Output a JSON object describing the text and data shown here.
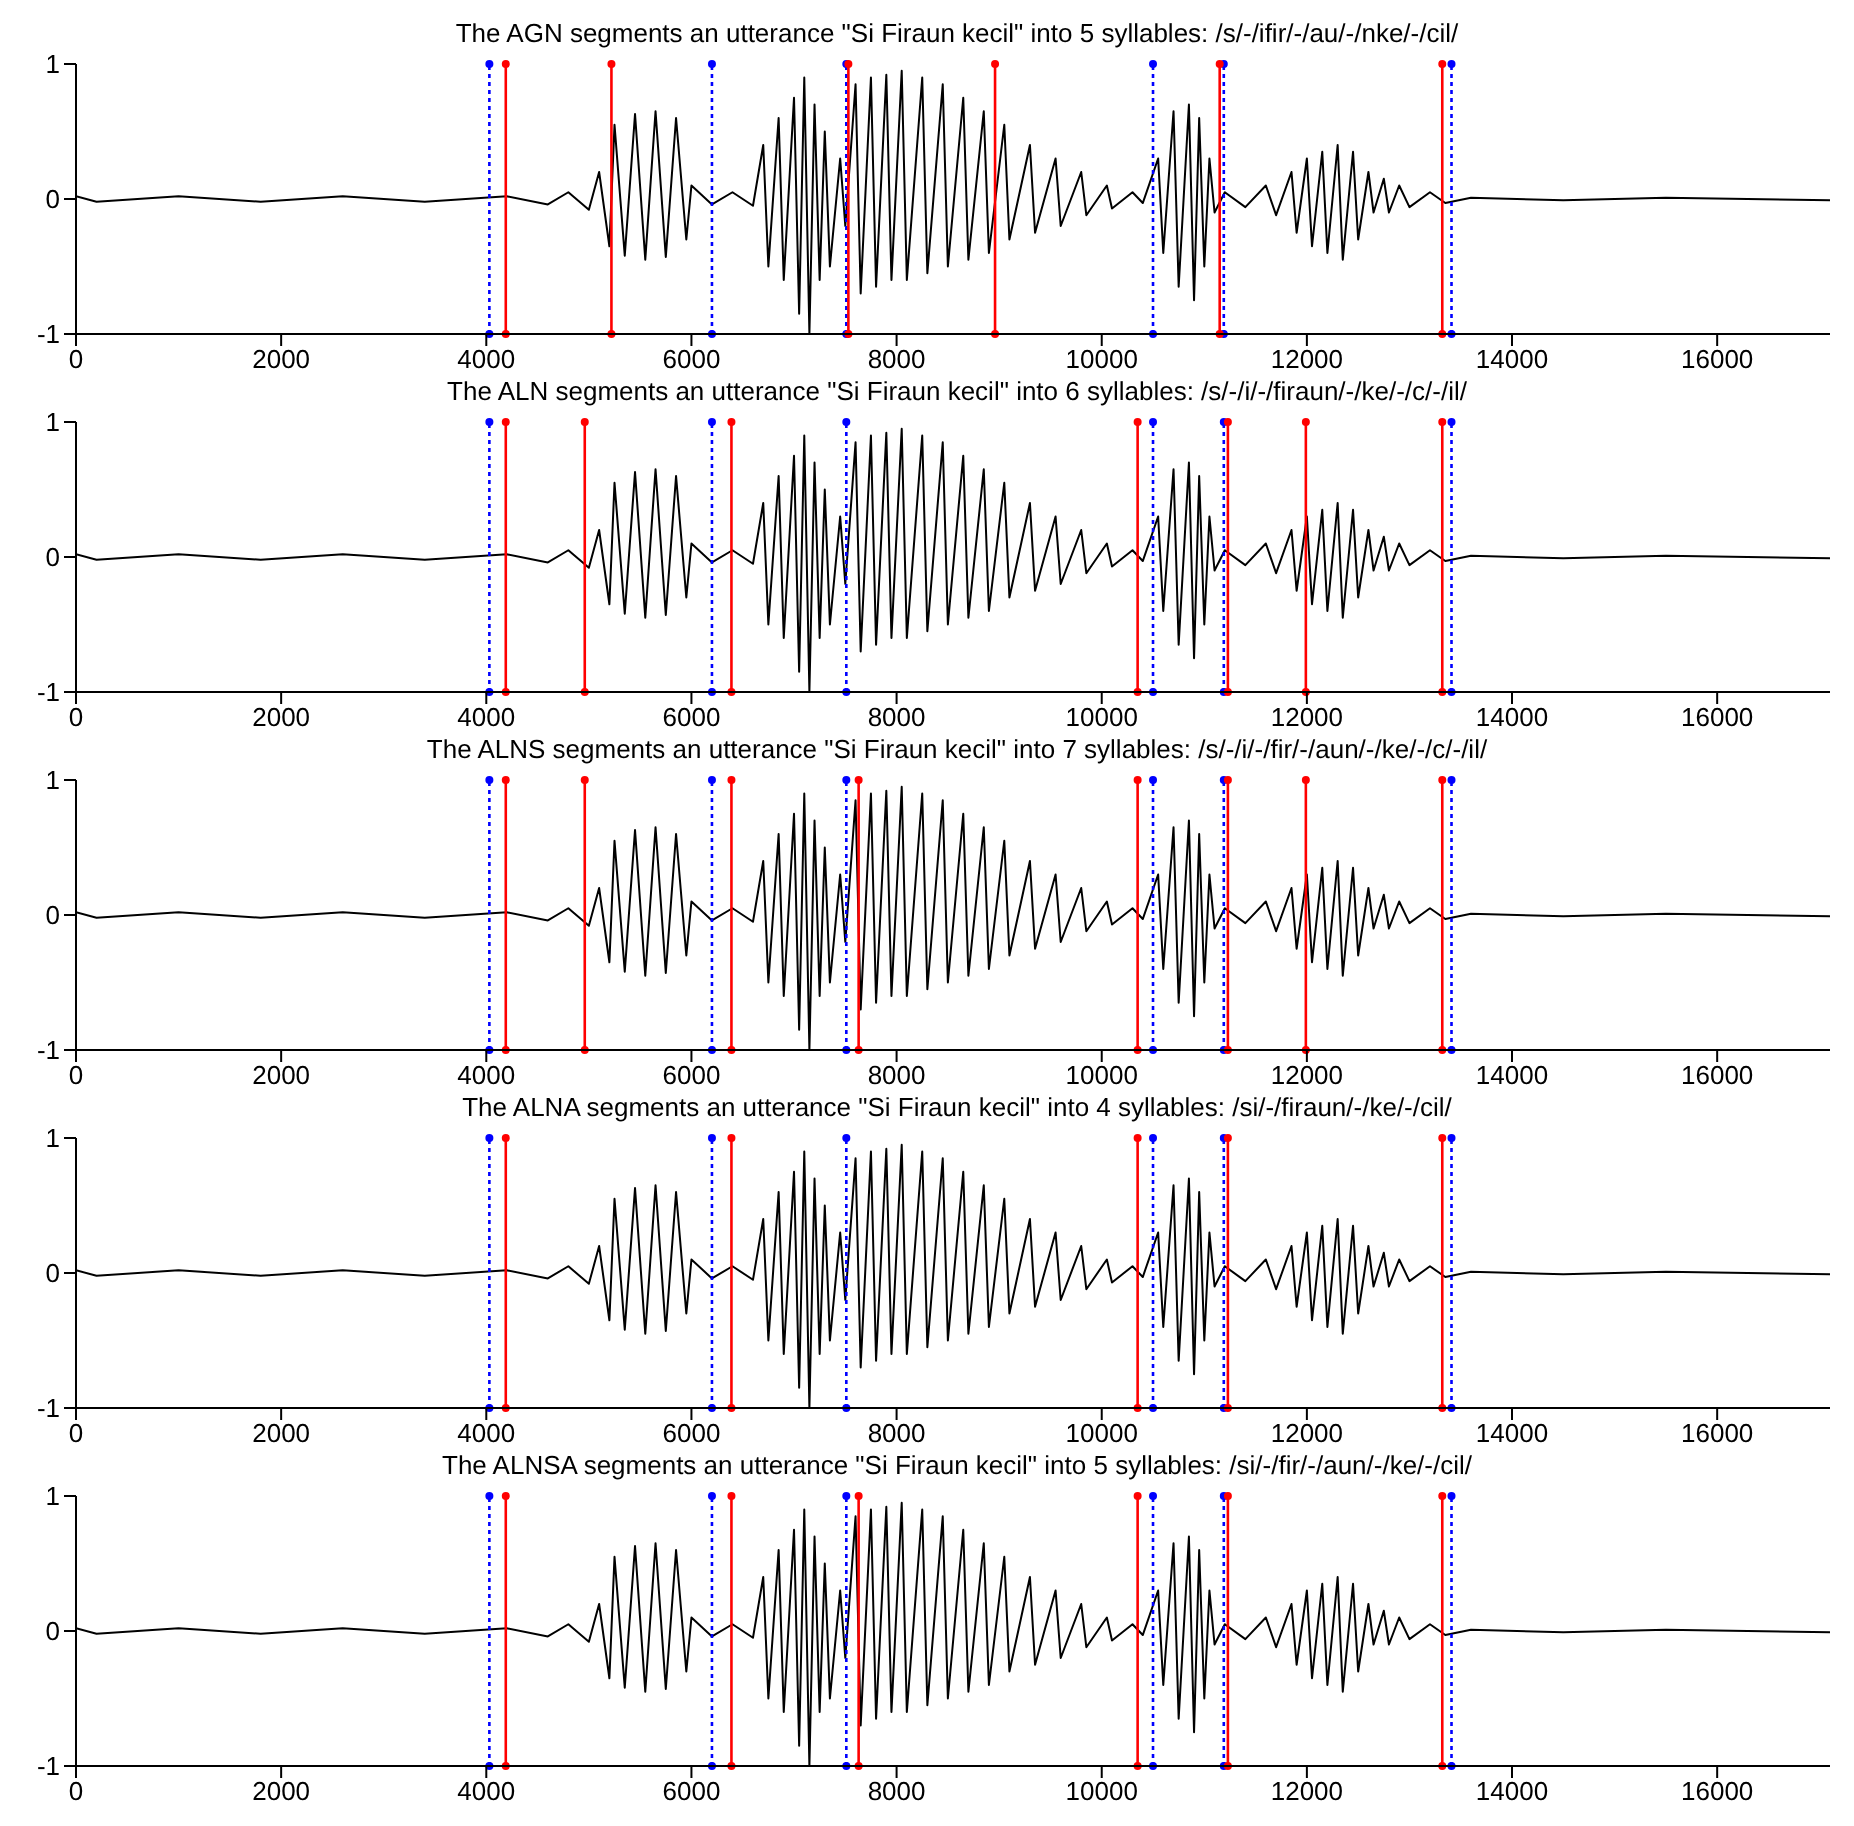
{
  "chart_data": [
    {
      "type": "line",
      "title": "The AGN segments an utterance \"Si Firaun kecil\" into 5 syllables: /s/-/ifir/-/au/-/nke/-/cil/",
      "x": [
        0,
        200,
        1000,
        1800,
        2600,
        3400,
        4200,
        4600,
        4800,
        5000,
        5100,
        5200,
        5250,
        5350,
        5450,
        5550,
        5650,
        5750,
        5850,
        5950,
        6000,
        6200,
        6400,
        6600,
        6700,
        6750,
        6850,
        6900,
        7000,
        7050,
        7100,
        7150,
        7200,
        7250,
        7300,
        7350,
        7450,
        7500,
        7600,
        7650,
        7750,
        7800,
        7900,
        7950,
        8050,
        8100,
        8250,
        8300,
        8450,
        8500,
        8650,
        8700,
        8850,
        8900,
        9050,
        9100,
        9300,
        9350,
        9550,
        9600,
        9800,
        9850,
        10050,
        10100,
        10300,
        10400,
        10550,
        10600,
        10700,
        10750,
        10850,
        10900,
        10950,
        11000,
        11050,
        11100,
        11200,
        11400,
        11600,
        11700,
        11850,
        11900,
        12000,
        12050,
        12150,
        12200,
        12300,
        12350,
        12450,
        12500,
        12600,
        12650,
        12750,
        12800,
        12900,
        13000,
        13200,
        13350,
        13600,
        14500,
        15500,
        17100
      ],
      "series": [
        {
          "color": "#000000",
          "values": [
            0.02,
            -0.02,
            0.02,
            -0.02,
            0.02,
            -0.02,
            0.02,
            -0.04,
            0.05,
            -0.08,
            0.2,
            -0.35,
            0.55,
            -0.42,
            0.63,
            -0.45,
            0.65,
            -0.43,
            0.6,
            -0.3,
            0.1,
            -0.04,
            0.05,
            -0.05,
            0.4,
            -0.5,
            0.6,
            -0.6,
            0.75,
            -0.85,
            0.9,
            -1.0,
            0.7,
            -0.6,
            0.5,
            -0.5,
            0.3,
            -0.2,
            0.85,
            -0.7,
            0.9,
            -0.65,
            0.92,
            -0.6,
            0.95,
            -0.6,
            0.9,
            -0.55,
            0.85,
            -0.5,
            0.75,
            -0.45,
            0.65,
            -0.4,
            0.55,
            -0.3,
            0.4,
            -0.25,
            0.3,
            -0.2,
            0.2,
            -0.12,
            0.1,
            -0.07,
            0.05,
            -0.03,
            0.3,
            -0.4,
            0.65,
            -0.65,
            0.7,
            -0.75,
            0.6,
            -0.5,
            0.3,
            -0.1,
            0.05,
            -0.06,
            0.1,
            -0.12,
            0.2,
            -0.25,
            0.3,
            -0.35,
            0.35,
            -0.4,
            0.4,
            -0.45,
            0.35,
            -0.3,
            0.2,
            -0.1,
            0.15,
            -0.1,
            0.1,
            -0.06,
            0.05,
            -0.03,
            0.01,
            -0.01,
            0.01,
            -0.01
          ]
        }
      ],
      "xlim": [
        0,
        17100
      ],
      "xticks": [
        0,
        2000,
        4000,
        6000,
        8000,
        10000,
        12000,
        14000,
        16000
      ],
      "ylim": [
        -1,
        1
      ],
      "yticks": [
        -1,
        0,
        1
      ],
      "grid": false,
      "legend": false,
      "ref_lines": [
        {
          "axis": "x",
          "value": 4030,
          "color": "#0000ff",
          "line_style": "dotted"
        },
        {
          "axis": "x",
          "value": 6200,
          "color": "#0000ff",
          "line_style": "dotted"
        },
        {
          "axis": "x",
          "value": 7510,
          "color": "#0000ff",
          "line_style": "dotted"
        },
        {
          "axis": "x",
          "value": 10500,
          "color": "#0000ff",
          "line_style": "dotted"
        },
        {
          "axis": "x",
          "value": 11190,
          "color": "#0000ff",
          "line_style": "dotted"
        },
        {
          "axis": "x",
          "value": 13410,
          "color": "#0000ff",
          "line_style": "dotted"
        },
        {
          "axis": "x",
          "value": 4190,
          "color": "#ff0000",
          "line_style": "solid"
        },
        {
          "axis": "x",
          "value": 5220,
          "color": "#ff0000",
          "line_style": "solid"
        },
        {
          "axis": "x",
          "value": 7530,
          "color": "#ff0000",
          "line_style": "solid"
        },
        {
          "axis": "x",
          "value": 8960,
          "color": "#ff0000",
          "line_style": "solid"
        },
        {
          "axis": "x",
          "value": 11150,
          "color": "#ff0000",
          "line_style": "solid"
        },
        {
          "axis": "x",
          "value": 13320,
          "color": "#ff0000",
          "line_style": "solid"
        }
      ]
    },
    {
      "type": "line",
      "title": "The ALN segments an utterance \"Si Firaun kecil\" into 6 syllables: /s/-/i/-/firaun/-/ke/-/c/-/il/",
      "x": [
        0,
        200,
        1000,
        1800,
        2600,
        3400,
        4200,
        4600,
        4800,
        5000,
        5100,
        5200,
        5250,
        5350,
        5450,
        5550,
        5650,
        5750,
        5850,
        5950,
        6000,
        6200,
        6400,
        6600,
        6700,
        6750,
        6850,
        6900,
        7000,
        7050,
        7100,
        7150,
        7200,
        7250,
        7300,
        7350,
        7450,
        7500,
        7600,
        7650,
        7750,
        7800,
        7900,
        7950,
        8050,
        8100,
        8250,
        8300,
        8450,
        8500,
        8650,
        8700,
        8850,
        8900,
        9050,
        9100,
        9300,
        9350,
        9550,
        9600,
        9800,
        9850,
        10050,
        10100,
        10300,
        10400,
        10550,
        10600,
        10700,
        10750,
        10850,
        10900,
        10950,
        11000,
        11050,
        11100,
        11200,
        11400,
        11600,
        11700,
        11850,
        11900,
        12000,
        12050,
        12150,
        12200,
        12300,
        12350,
        12450,
        12500,
        12600,
        12650,
        12750,
        12800,
        12900,
        13000,
        13200,
        13350,
        13600,
        14500,
        15500,
        17100
      ],
      "series": [
        {
          "color": "#000000",
          "values": [
            0.02,
            -0.02,
            0.02,
            -0.02,
            0.02,
            -0.02,
            0.02,
            -0.04,
            0.05,
            -0.08,
            0.2,
            -0.35,
            0.55,
            -0.42,
            0.63,
            -0.45,
            0.65,
            -0.43,
            0.6,
            -0.3,
            0.1,
            -0.04,
            0.05,
            -0.05,
            0.4,
            -0.5,
            0.6,
            -0.6,
            0.75,
            -0.85,
            0.9,
            -1.0,
            0.7,
            -0.6,
            0.5,
            -0.5,
            0.3,
            -0.2,
            0.85,
            -0.7,
            0.9,
            -0.65,
            0.92,
            -0.6,
            0.95,
            -0.6,
            0.9,
            -0.55,
            0.85,
            -0.5,
            0.75,
            -0.45,
            0.65,
            -0.4,
            0.55,
            -0.3,
            0.4,
            -0.25,
            0.3,
            -0.2,
            0.2,
            -0.12,
            0.1,
            -0.07,
            0.05,
            -0.03,
            0.3,
            -0.4,
            0.65,
            -0.65,
            0.7,
            -0.75,
            0.6,
            -0.5,
            0.3,
            -0.1,
            0.05,
            -0.06,
            0.1,
            -0.12,
            0.2,
            -0.25,
            0.3,
            -0.35,
            0.35,
            -0.4,
            0.4,
            -0.45,
            0.35,
            -0.3,
            0.2,
            -0.1,
            0.15,
            -0.1,
            0.1,
            -0.06,
            0.05,
            -0.03,
            0.01,
            -0.01,
            0.01,
            -0.01
          ]
        }
      ],
      "xlim": [
        0,
        17100
      ],
      "xticks": [
        0,
        2000,
        4000,
        6000,
        8000,
        10000,
        12000,
        14000,
        16000
      ],
      "ylim": [
        -1,
        1
      ],
      "yticks": [
        -1,
        0,
        1
      ],
      "grid": false,
      "legend": false,
      "ref_lines": [
        {
          "axis": "x",
          "value": 4030,
          "color": "#0000ff",
          "line_style": "dotted"
        },
        {
          "axis": "x",
          "value": 6200,
          "color": "#0000ff",
          "line_style": "dotted"
        },
        {
          "axis": "x",
          "value": 7510,
          "color": "#0000ff",
          "line_style": "dotted"
        },
        {
          "axis": "x",
          "value": 10500,
          "color": "#0000ff",
          "line_style": "dotted"
        },
        {
          "axis": "x",
          "value": 11190,
          "color": "#0000ff",
          "line_style": "dotted"
        },
        {
          "axis": "x",
          "value": 13410,
          "color": "#0000ff",
          "line_style": "dotted"
        },
        {
          "axis": "x",
          "value": 4190,
          "color": "#ff0000",
          "line_style": "solid"
        },
        {
          "axis": "x",
          "value": 4960,
          "color": "#ff0000",
          "line_style": "solid"
        },
        {
          "axis": "x",
          "value": 6390,
          "color": "#ff0000",
          "line_style": "solid"
        },
        {
          "axis": "x",
          "value": 10350,
          "color": "#ff0000",
          "line_style": "solid"
        },
        {
          "axis": "x",
          "value": 11230,
          "color": "#ff0000",
          "line_style": "solid"
        },
        {
          "axis": "x",
          "value": 11990,
          "color": "#ff0000",
          "line_style": "solid"
        },
        {
          "axis": "x",
          "value": 13320,
          "color": "#ff0000",
          "line_style": "solid"
        }
      ]
    },
    {
      "type": "line",
      "title": "The ALNS segments an utterance \"Si Firaun kecil\" into 7 syllables: /s/-/i/-/fir/-/aun/-/ke/-/c/-/il/",
      "x": [
        0,
        200,
        1000,
        1800,
        2600,
        3400,
        4200,
        4600,
        4800,
        5000,
        5100,
        5200,
        5250,
        5350,
        5450,
        5550,
        5650,
        5750,
        5850,
        5950,
        6000,
        6200,
        6400,
        6600,
        6700,
        6750,
        6850,
        6900,
        7000,
        7050,
        7100,
        7150,
        7200,
        7250,
        7300,
        7350,
        7450,
        7500,
        7600,
        7650,
        7750,
        7800,
        7900,
        7950,
        8050,
        8100,
        8250,
        8300,
        8450,
        8500,
        8650,
        8700,
        8850,
        8900,
        9050,
        9100,
        9300,
        9350,
        9550,
        9600,
        9800,
        9850,
        10050,
        10100,
        10300,
        10400,
        10550,
        10600,
        10700,
        10750,
        10850,
        10900,
        10950,
        11000,
        11050,
        11100,
        11200,
        11400,
        11600,
        11700,
        11850,
        11900,
        12000,
        12050,
        12150,
        12200,
        12300,
        12350,
        12450,
        12500,
        12600,
        12650,
        12750,
        12800,
        12900,
        13000,
        13200,
        13350,
        13600,
        14500,
        15500,
        17100
      ],
      "series": [
        {
          "color": "#000000",
          "values": [
            0.02,
            -0.02,
            0.02,
            -0.02,
            0.02,
            -0.02,
            0.02,
            -0.04,
            0.05,
            -0.08,
            0.2,
            -0.35,
            0.55,
            -0.42,
            0.63,
            -0.45,
            0.65,
            -0.43,
            0.6,
            -0.3,
            0.1,
            -0.04,
            0.05,
            -0.05,
            0.4,
            -0.5,
            0.6,
            -0.6,
            0.75,
            -0.85,
            0.9,
            -1.0,
            0.7,
            -0.6,
            0.5,
            -0.5,
            0.3,
            -0.2,
            0.85,
            -0.7,
            0.9,
            -0.65,
            0.92,
            -0.6,
            0.95,
            -0.6,
            0.9,
            -0.55,
            0.85,
            -0.5,
            0.75,
            -0.45,
            0.65,
            -0.4,
            0.55,
            -0.3,
            0.4,
            -0.25,
            0.3,
            -0.2,
            0.2,
            -0.12,
            0.1,
            -0.07,
            0.05,
            -0.03,
            0.3,
            -0.4,
            0.65,
            -0.65,
            0.7,
            -0.75,
            0.6,
            -0.5,
            0.3,
            -0.1,
            0.05,
            -0.06,
            0.1,
            -0.12,
            0.2,
            -0.25,
            0.3,
            -0.35,
            0.35,
            -0.4,
            0.4,
            -0.45,
            0.35,
            -0.3,
            0.2,
            -0.1,
            0.15,
            -0.1,
            0.1,
            -0.06,
            0.05,
            -0.03,
            0.01,
            -0.01,
            0.01,
            -0.01
          ]
        }
      ],
      "xlim": [
        0,
        17100
      ],
      "xticks": [
        0,
        2000,
        4000,
        6000,
        8000,
        10000,
        12000,
        14000,
        16000
      ],
      "ylim": [
        -1,
        1
      ],
      "yticks": [
        -1,
        0,
        1
      ],
      "grid": false,
      "legend": false,
      "ref_lines": [
        {
          "axis": "x",
          "value": 4030,
          "color": "#0000ff",
          "line_style": "dotted"
        },
        {
          "axis": "x",
          "value": 6200,
          "color": "#0000ff",
          "line_style": "dotted"
        },
        {
          "axis": "x",
          "value": 7510,
          "color": "#0000ff",
          "line_style": "dotted"
        },
        {
          "axis": "x",
          "value": 10500,
          "color": "#0000ff",
          "line_style": "dotted"
        },
        {
          "axis": "x",
          "value": 11190,
          "color": "#0000ff",
          "line_style": "dotted"
        },
        {
          "axis": "x",
          "value": 13410,
          "color": "#0000ff",
          "line_style": "dotted"
        },
        {
          "axis": "x",
          "value": 4190,
          "color": "#ff0000",
          "line_style": "solid"
        },
        {
          "axis": "x",
          "value": 4960,
          "color": "#ff0000",
          "line_style": "solid"
        },
        {
          "axis": "x",
          "value": 6390,
          "color": "#ff0000",
          "line_style": "solid"
        },
        {
          "axis": "x",
          "value": 7630,
          "color": "#ff0000",
          "line_style": "solid"
        },
        {
          "axis": "x",
          "value": 10350,
          "color": "#ff0000",
          "line_style": "solid"
        },
        {
          "axis": "x",
          "value": 11230,
          "color": "#ff0000",
          "line_style": "solid"
        },
        {
          "axis": "x",
          "value": 11990,
          "color": "#ff0000",
          "line_style": "solid"
        },
        {
          "axis": "x",
          "value": 13320,
          "color": "#ff0000",
          "line_style": "solid"
        }
      ]
    },
    {
      "type": "line",
      "title": "The ALNA segments an utterance \"Si Firaun kecil\" into 4 syllables: /si/-/firaun/-/ke/-/cil/",
      "x": [
        0,
        200,
        1000,
        1800,
        2600,
        3400,
        4200,
        4600,
        4800,
        5000,
        5100,
        5200,
        5250,
        5350,
        5450,
        5550,
        5650,
        5750,
        5850,
        5950,
        6000,
        6200,
        6400,
        6600,
        6700,
        6750,
        6850,
        6900,
        7000,
        7050,
        7100,
        7150,
        7200,
        7250,
        7300,
        7350,
        7450,
        7500,
        7600,
        7650,
        7750,
        7800,
        7900,
        7950,
        8050,
        8100,
        8250,
        8300,
        8450,
        8500,
        8650,
        8700,
        8850,
        8900,
        9050,
        9100,
        9300,
        9350,
        9550,
        9600,
        9800,
        9850,
        10050,
        10100,
        10300,
        10400,
        10550,
        10600,
        10700,
        10750,
        10850,
        10900,
        10950,
        11000,
        11050,
        11100,
        11200,
        11400,
        11600,
        11700,
        11850,
        11900,
        12000,
        12050,
        12150,
        12200,
        12300,
        12350,
        12450,
        12500,
        12600,
        12650,
        12750,
        12800,
        12900,
        13000,
        13200,
        13350,
        13600,
        14500,
        15500,
        17100
      ],
      "series": [
        {
          "color": "#000000",
          "values": [
            0.02,
            -0.02,
            0.02,
            -0.02,
            0.02,
            -0.02,
            0.02,
            -0.04,
            0.05,
            -0.08,
            0.2,
            -0.35,
            0.55,
            -0.42,
            0.63,
            -0.45,
            0.65,
            -0.43,
            0.6,
            -0.3,
            0.1,
            -0.04,
            0.05,
            -0.05,
            0.4,
            -0.5,
            0.6,
            -0.6,
            0.75,
            -0.85,
            0.9,
            -1.0,
            0.7,
            -0.6,
            0.5,
            -0.5,
            0.3,
            -0.2,
            0.85,
            -0.7,
            0.9,
            -0.65,
            0.92,
            -0.6,
            0.95,
            -0.6,
            0.9,
            -0.55,
            0.85,
            -0.5,
            0.75,
            -0.45,
            0.65,
            -0.4,
            0.55,
            -0.3,
            0.4,
            -0.25,
            0.3,
            -0.2,
            0.2,
            -0.12,
            0.1,
            -0.07,
            0.05,
            -0.03,
            0.3,
            -0.4,
            0.65,
            -0.65,
            0.7,
            -0.75,
            0.6,
            -0.5,
            0.3,
            -0.1,
            0.05,
            -0.06,
            0.1,
            -0.12,
            0.2,
            -0.25,
            0.3,
            -0.35,
            0.35,
            -0.4,
            0.4,
            -0.45,
            0.35,
            -0.3,
            0.2,
            -0.1,
            0.15,
            -0.1,
            0.1,
            -0.06,
            0.05,
            -0.03,
            0.01,
            -0.01,
            0.01,
            -0.01
          ]
        }
      ],
      "xlim": [
        0,
        17100
      ],
      "xticks": [
        0,
        2000,
        4000,
        6000,
        8000,
        10000,
        12000,
        14000,
        16000
      ],
      "ylim": [
        -1,
        1
      ],
      "yticks": [
        -1,
        0,
        1
      ],
      "grid": false,
      "legend": false,
      "ref_lines": [
        {
          "axis": "x",
          "value": 4030,
          "color": "#0000ff",
          "line_style": "dotted"
        },
        {
          "axis": "x",
          "value": 6200,
          "color": "#0000ff",
          "line_style": "dotted"
        },
        {
          "axis": "x",
          "value": 7510,
          "color": "#0000ff",
          "line_style": "dotted"
        },
        {
          "axis": "x",
          "value": 10500,
          "color": "#0000ff",
          "line_style": "dotted"
        },
        {
          "axis": "x",
          "value": 11190,
          "color": "#0000ff",
          "line_style": "dotted"
        },
        {
          "axis": "x",
          "value": 13410,
          "color": "#0000ff",
          "line_style": "dotted"
        },
        {
          "axis": "x",
          "value": 4190,
          "color": "#ff0000",
          "line_style": "solid"
        },
        {
          "axis": "x",
          "value": 6390,
          "color": "#ff0000",
          "line_style": "solid"
        },
        {
          "axis": "x",
          "value": 10350,
          "color": "#ff0000",
          "line_style": "solid"
        },
        {
          "axis": "x",
          "value": 11230,
          "color": "#ff0000",
          "line_style": "solid"
        },
        {
          "axis": "x",
          "value": 13320,
          "color": "#ff0000",
          "line_style": "solid"
        }
      ]
    },
    {
      "type": "line",
      "title": "The ALNSA segments an utterance \"Si Firaun kecil\" into 5 syllables: /si/-/fir/-/aun/-/ke/-/cil/",
      "x": [
        0,
        200,
        1000,
        1800,
        2600,
        3400,
        4200,
        4600,
        4800,
        5000,
        5100,
        5200,
        5250,
        5350,
        5450,
        5550,
        5650,
        5750,
        5850,
        5950,
        6000,
        6200,
        6400,
        6600,
        6700,
        6750,
        6850,
        6900,
        7000,
        7050,
        7100,
        7150,
        7200,
        7250,
        7300,
        7350,
        7450,
        7500,
        7600,
        7650,
        7750,
        7800,
        7900,
        7950,
        8050,
        8100,
        8250,
        8300,
        8450,
        8500,
        8650,
        8700,
        8850,
        8900,
        9050,
        9100,
        9300,
        9350,
        9550,
        9600,
        9800,
        9850,
        10050,
        10100,
        10300,
        10400,
        10550,
        10600,
        10700,
        10750,
        10850,
        10900,
        10950,
        11000,
        11050,
        11100,
        11200,
        11400,
        11600,
        11700,
        11850,
        11900,
        12000,
        12050,
        12150,
        12200,
        12300,
        12350,
        12450,
        12500,
        12600,
        12650,
        12750,
        12800,
        12900,
        13000,
        13200,
        13350,
        13600,
        14500,
        15500,
        17100
      ],
      "series": [
        {
          "color": "#000000",
          "values": [
            0.02,
            -0.02,
            0.02,
            -0.02,
            0.02,
            -0.02,
            0.02,
            -0.04,
            0.05,
            -0.08,
            0.2,
            -0.35,
            0.55,
            -0.42,
            0.63,
            -0.45,
            0.65,
            -0.43,
            0.6,
            -0.3,
            0.1,
            -0.04,
            0.05,
            -0.05,
            0.4,
            -0.5,
            0.6,
            -0.6,
            0.75,
            -0.85,
            0.9,
            -1.0,
            0.7,
            -0.6,
            0.5,
            -0.5,
            0.3,
            -0.2,
            0.85,
            -0.7,
            0.9,
            -0.65,
            0.92,
            -0.6,
            0.95,
            -0.6,
            0.9,
            -0.55,
            0.85,
            -0.5,
            0.75,
            -0.45,
            0.65,
            -0.4,
            0.55,
            -0.3,
            0.4,
            -0.25,
            0.3,
            -0.2,
            0.2,
            -0.12,
            0.1,
            -0.07,
            0.05,
            -0.03,
            0.3,
            -0.4,
            0.65,
            -0.65,
            0.7,
            -0.75,
            0.6,
            -0.5,
            0.3,
            -0.1,
            0.05,
            -0.06,
            0.1,
            -0.12,
            0.2,
            -0.25,
            0.3,
            -0.35,
            0.35,
            -0.4,
            0.4,
            -0.45,
            0.35,
            -0.3,
            0.2,
            -0.1,
            0.15,
            -0.1,
            0.1,
            -0.06,
            0.05,
            -0.03,
            0.01,
            -0.01,
            0.01,
            -0.01
          ]
        }
      ],
      "xlim": [
        0,
        17100
      ],
      "xticks": [
        0,
        2000,
        4000,
        6000,
        8000,
        10000,
        12000,
        14000,
        16000
      ],
      "ylim": [
        -1,
        1
      ],
      "yticks": [
        -1,
        0,
        1
      ],
      "grid": false,
      "legend": false,
      "ref_lines": [
        {
          "axis": "x",
          "value": 4030,
          "color": "#0000ff",
          "line_style": "dotted"
        },
        {
          "axis": "x",
          "value": 6200,
          "color": "#0000ff",
          "line_style": "dotted"
        },
        {
          "axis": "x",
          "value": 7510,
          "color": "#0000ff",
          "line_style": "dotted"
        },
        {
          "axis": "x",
          "value": 10500,
          "color": "#0000ff",
          "line_style": "dotted"
        },
        {
          "axis": "x",
          "value": 11190,
          "color": "#0000ff",
          "line_style": "dotted"
        },
        {
          "axis": "x",
          "value": 13410,
          "color": "#0000ff",
          "line_style": "dotted"
        },
        {
          "axis": "x",
          "value": 4190,
          "color": "#ff0000",
          "line_style": "solid"
        },
        {
          "axis": "x",
          "value": 6390,
          "color": "#ff0000",
          "line_style": "solid"
        },
        {
          "axis": "x",
          "value": 7630,
          "color": "#ff0000",
          "line_style": "solid"
        },
        {
          "axis": "x",
          "value": 10350,
          "color": "#ff0000",
          "line_style": "solid"
        },
        {
          "axis": "x",
          "value": 11230,
          "color": "#ff0000",
          "line_style": "solid"
        },
        {
          "axis": "x",
          "value": 13320,
          "color": "#ff0000",
          "line_style": "solid"
        }
      ]
    }
  ]
}
